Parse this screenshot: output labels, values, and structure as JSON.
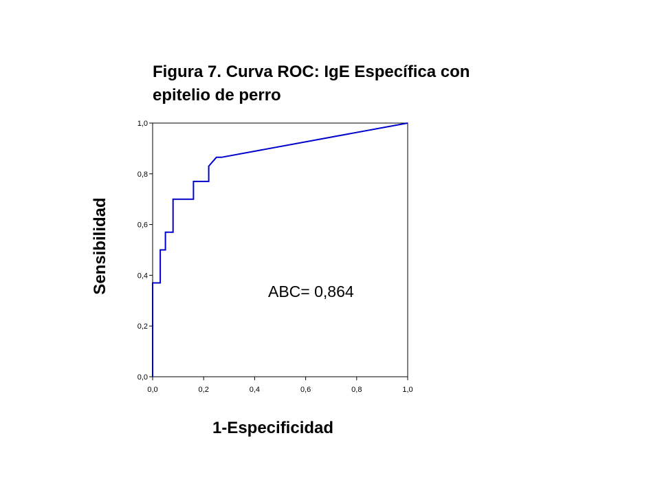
{
  "chart_data": {
    "type": "line",
    "title_lines": [
      "Figura 7. Curva ROC: IgE Específica con",
      "epitelio de perro"
    ],
    "xlabel": "1-Especificidad",
    "ylabel": "Sensibilidad",
    "xlim": [
      0,
      1
    ],
    "ylim": [
      0,
      1
    ],
    "x_ticks": [
      "0,0",
      "0,2",
      "0,4",
      "0,6",
      "0,8",
      "1,0"
    ],
    "y_ticks": [
      "0,0",
      "0,2",
      "0,4",
      "0,6",
      "0,8",
      "1,0"
    ],
    "grid": false,
    "line_color": "#0000cc",
    "annotation": "ABC= 0,864",
    "series": [
      {
        "x": [
          0.0,
          0.0,
          0.03,
          0.03,
          0.05,
          0.05,
          0.08,
          0.08,
          0.16,
          0.16,
          0.22,
          0.22,
          0.25,
          0.27,
          1.0
        ],
        "y": [
          0.0,
          0.37,
          0.37,
          0.5,
          0.5,
          0.57,
          0.57,
          0.7,
          0.7,
          0.77,
          0.77,
          0.83,
          0.865,
          0.865,
          1.0
        ]
      }
    ]
  }
}
